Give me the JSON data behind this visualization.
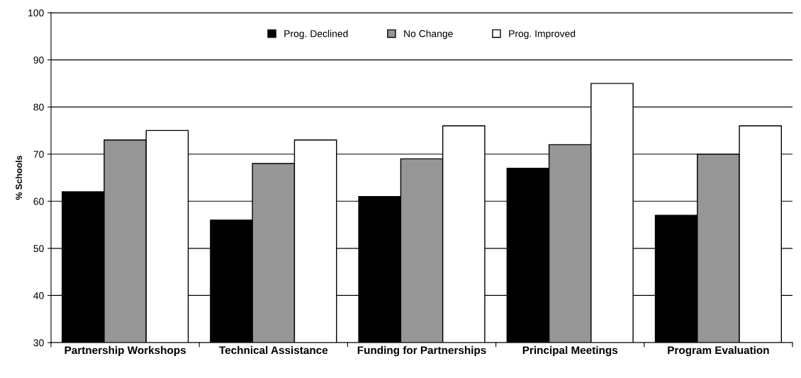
{
  "chart_data": {
    "type": "bar",
    "ylabel": "% Schools",
    "categories": [
      "Partnership Workshops",
      "Technical Assistance",
      "Funding for Partnerships",
      "Principal Meetings",
      "Program Evaluation"
    ],
    "series": [
      {
        "name": "Prog. Declined",
        "color": "#000000",
        "values": [
          62,
          56,
          61,
          67,
          57
        ]
      },
      {
        "name": "No Change",
        "color": "#969696",
        "values": [
          73,
          68,
          69,
          72,
          70
        ]
      },
      {
        "name": "Prog. Improved",
        "color": "#ffffff",
        "values": [
          75,
          73,
          76,
          85,
          76
        ]
      }
    ],
    "ylim": [
      30,
      100
    ],
    "yticks": [
      30,
      40,
      50,
      60,
      70,
      80,
      90,
      100
    ],
    "grid": "y",
    "legend": "top"
  }
}
